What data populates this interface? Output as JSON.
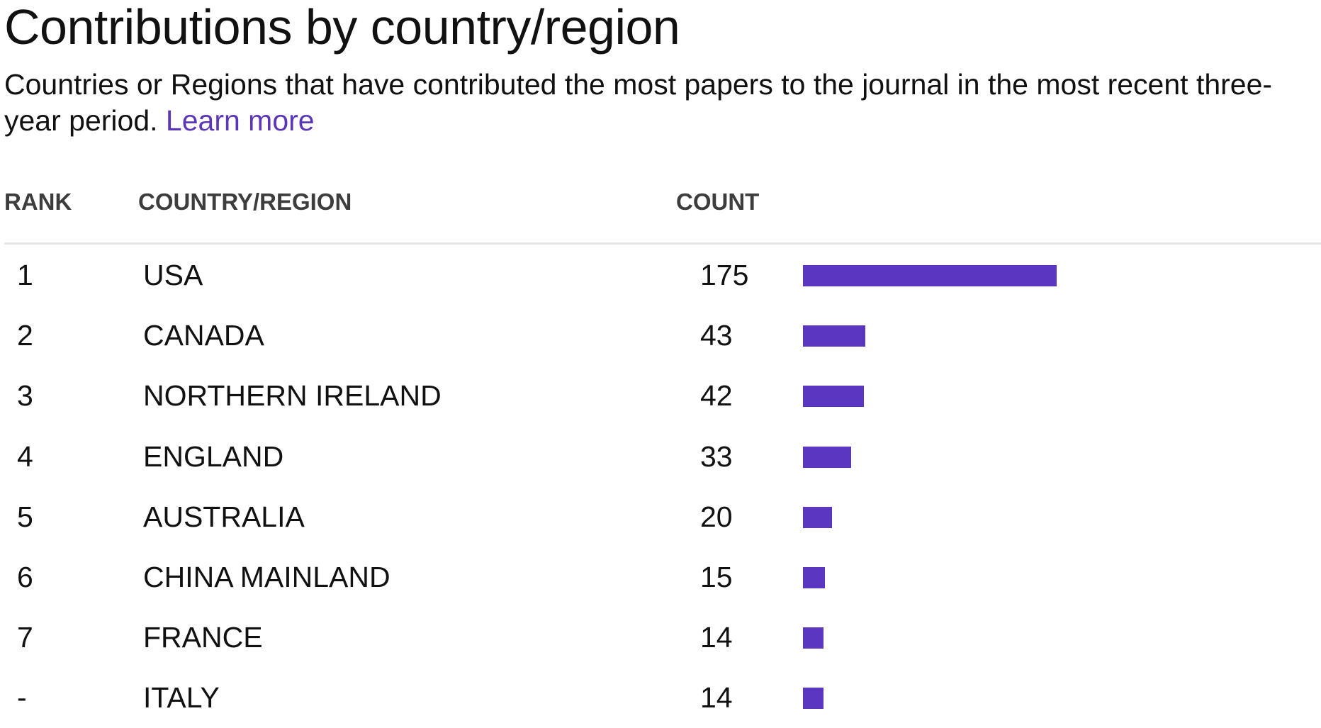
{
  "header": {
    "title": "Contributions by country/region",
    "subtitle": "Countries or Regions that have contributed the most papers to the journal in the most recent three-year period.",
    "link_label": "Learn more"
  },
  "columns": {
    "rank": "RANK",
    "country": "COUNTRY/REGION",
    "count": "COUNT"
  },
  "colors": {
    "bar": "#5b36c0",
    "link": "#5b36b8"
  },
  "chart_data": {
    "type": "bar",
    "orientation": "horizontal",
    "categories": [
      "USA",
      "CANADA",
      "NORTHERN IRELAND",
      "ENGLAND",
      "AUSTRALIA",
      "CHINA MAINLAND",
      "FRANCE",
      "ITALY"
    ],
    "ranks": [
      "1",
      "2",
      "3",
      "4",
      "5",
      "6",
      "7",
      "-"
    ],
    "values": [
      175,
      43,
      42,
      33,
      20,
      15,
      14,
      14
    ],
    "title": "Contributions by country/region",
    "xlabel": "",
    "ylabel": "",
    "grid": false
  }
}
